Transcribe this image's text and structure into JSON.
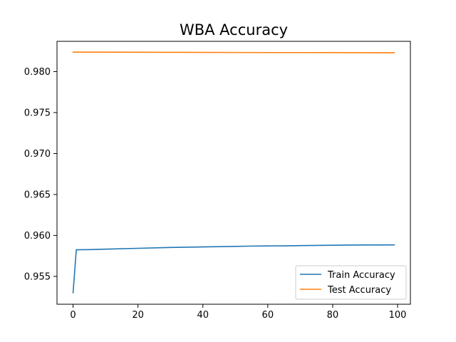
{
  "chart_data": {
    "type": "line",
    "title": "WBA Accuracy",
    "xlabel": "",
    "ylabel": "",
    "xlim": [
      -4.95,
      103.95
    ],
    "ylim": [
      0.9516,
      0.9837
    ],
    "xticks": [
      0,
      20,
      40,
      60,
      80,
      100
    ],
    "yticks": [
      0.955,
      0.96,
      0.965,
      0.97,
      0.975,
      0.98
    ],
    "ytick_labels": [
      "0.955",
      "0.960",
      "0.965",
      "0.970",
      "0.975",
      "0.980"
    ],
    "grid": false,
    "legend_position": "lower-right",
    "colors": {
      "train": "#1f77b4",
      "test": "#ff7f0e"
    },
    "series": [
      {
        "name": "Train Accuracy",
        "color": "#1f77b4",
        "x": [
          0,
          1,
          5,
          10,
          20,
          30,
          40,
          50,
          55,
          60,
          65,
          70,
          75,
          80,
          85,
          90,
          95,
          99
        ],
        "y": [
          0.953,
          0.95825,
          0.95827,
          0.95833,
          0.95843,
          0.95853,
          0.9586,
          0.95866,
          0.9587,
          0.95872,
          0.95873,
          0.95876,
          0.95878,
          0.9588,
          0.95883,
          0.95884,
          0.95884,
          0.95885
        ]
      },
      {
        "name": "Test Accuracy",
        "color": "#ff7f0e",
        "x": [
          0,
          10,
          20,
          30,
          40,
          50,
          60,
          70,
          80,
          90,
          95,
          99
        ],
        "y": [
          0.98238,
          0.98238,
          0.98237,
          0.98236,
          0.98235,
          0.98234,
          0.98233,
          0.98233,
          0.98232,
          0.98231,
          0.9823,
          0.9823
        ]
      }
    ]
  }
}
